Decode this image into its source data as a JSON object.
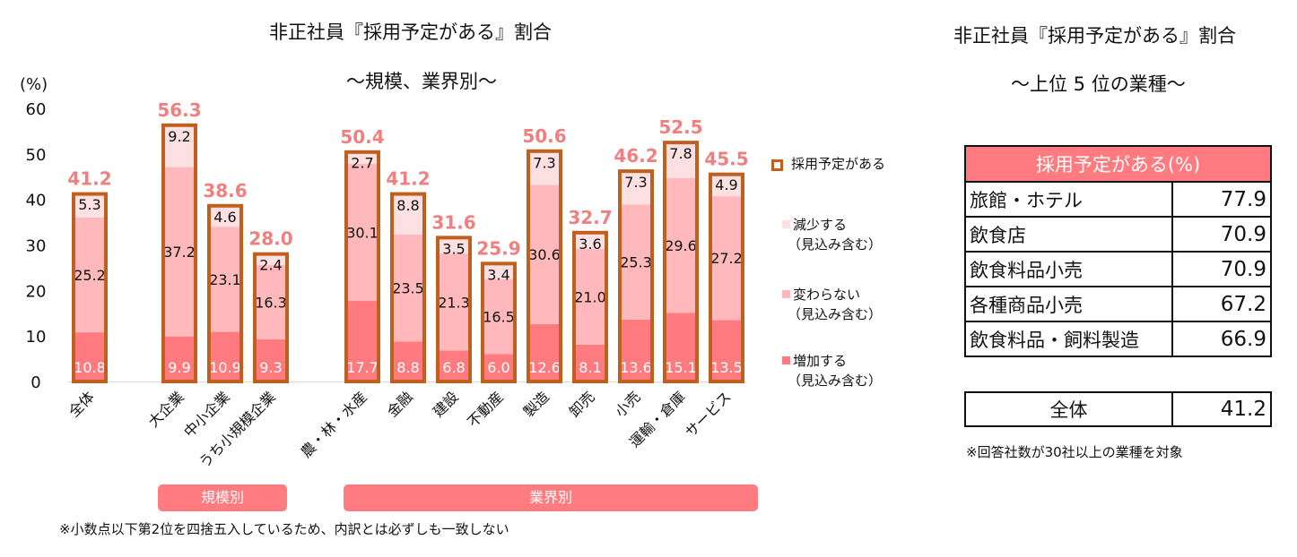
{
  "left_panel": {
    "title": "非正社員『採用予定がある』割合",
    "subtitle": "～規模、業界別～",
    "group_labels": [
      "規模別",
      "業界別"
    ],
    "footnote": "※小数点以下第2位を四捨五入しているため、内訳とは必ずしも一致しない"
  },
  "right_panel": {
    "title": "非正社員『採用予定がある』割合",
    "subtitle": "～上位 5 位の業種～",
    "table_header": "採用予定がある(%)",
    "rows": [
      {
        "label": "旅館・ホテル",
        "value": "77.9"
      },
      {
        "label": "飲食店",
        "value": "70.9"
      },
      {
        "label": "飲食料品小売",
        "value": "70.9"
      },
      {
        "label": "各種商品小売",
        "value": "67.2"
      },
      {
        "label": "飲食料品・飼料製造",
        "value": "66.9"
      }
    ],
    "total_row": {
      "label": "全体",
      "value": "41.2"
    },
    "note": "※回答社数が30社以上の業種を対象"
  },
  "colors": {
    "decrease": "#fde0e2",
    "same": "#ffb8bc",
    "increase": "#ff7b80",
    "outline": "#c0601e",
    "total_label": "#f08080",
    "group_box": "#ff7b80"
  },
  "chart_data": {
    "type": "bar",
    "stacked": true,
    "title": "非正社員『採用予定がある』割合 ～規模、業界別～",
    "ylabel": "(%)",
    "xlabel": "",
    "ylim": [
      0,
      60
    ],
    "yticks": [
      0,
      10,
      20,
      30,
      40,
      50,
      60
    ],
    "grid": false,
    "legend_position": "right",
    "categories": [
      "全体",
      "大企業",
      "中小企業",
      "うち小規模企業",
      "農・林・水産",
      "金融",
      "建設",
      "不動産",
      "製造",
      "卸売",
      "小売",
      "運輸・倉庫",
      "サービス"
    ],
    "groups": [
      {
        "name": "規模別",
        "categories": [
          "大企業",
          "中小企業",
          "うち小規模企業"
        ]
      },
      {
        "name": "業界別",
        "categories": [
          "農・林・水産",
          "金融",
          "建設",
          "不動産",
          "製造",
          "卸売",
          "小売",
          "運輸・倉庫",
          "サービス"
        ]
      }
    ],
    "series": [
      {
        "name": "増加する（見込み含む）",
        "key": "increase",
        "values": [
          10.8,
          9.9,
          10.9,
          9.3,
          17.7,
          8.8,
          6.8,
          6.0,
          12.6,
          8.1,
          13.6,
          15.1,
          13.5
        ]
      },
      {
        "name": "変わらない（見込み含む）",
        "key": "same",
        "values": [
          25.2,
          37.2,
          23.1,
          16.3,
          30.1,
          23.5,
          21.3,
          16.5,
          30.6,
          21.0,
          25.3,
          29.6,
          27.2
        ]
      },
      {
        "name": "減少する（見込み含む）",
        "key": "decrease",
        "values": [
          5.3,
          9.2,
          4.6,
          2.4,
          2.7,
          8.8,
          3.5,
          3.4,
          7.3,
          3.6,
          7.3,
          7.8,
          4.9
        ]
      }
    ],
    "totals": {
      "name": "採用予定がある",
      "values": [
        41.2,
        56.3,
        38.6,
        28.0,
        50.4,
        41.2,
        31.6,
        25.9,
        50.6,
        32.7,
        46.2,
        52.5,
        45.5
      ]
    },
    "legend": [
      {
        "label": "採用予定がある",
        "sub": "",
        "key": "outline"
      },
      {
        "label": "減少する",
        "sub": "（見込み含む）",
        "key": "decrease"
      },
      {
        "label": "変わらない",
        "sub": "（見込み含む）",
        "key": "same"
      },
      {
        "label": "増加する",
        "sub": "（見込み含む）",
        "key": "increase"
      }
    ]
  }
}
